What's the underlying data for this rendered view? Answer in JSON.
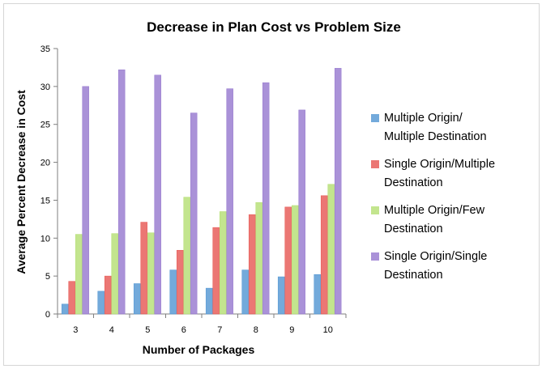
{
  "chart_data": {
    "type": "bar",
    "title": "Decrease in Plan Cost vs Problem Size",
    "xlabel": "Number of Packages",
    "ylabel": "Average Percent Decrease in Cost",
    "ylim": [
      0,
      35
    ],
    "yticks": [
      0,
      5,
      10,
      15,
      20,
      25,
      30,
      35
    ],
    "grid": false,
    "legend_position": "right",
    "categories": [
      "3",
      "4",
      "5",
      "6",
      "7",
      "8",
      "9",
      "10"
    ],
    "series": [
      {
        "name": "Multiple Origin/ Multiple Destination",
        "legend_lines": [
          "Multiple Origin/",
          "Multiple Destination"
        ],
        "color": "#5b9bd5",
        "values": [
          1.3,
          3.0,
          4.0,
          5.8,
          3.4,
          5.8,
          4.9,
          5.2
        ]
      },
      {
        "name": "Single Origin/Multiple Destination",
        "legend_lines": [
          "Single Origin/Multiple",
          "Destination"
        ],
        "color": "#e85f5c",
        "values": [
          4.3,
          5.0,
          12.1,
          8.4,
          11.4,
          13.1,
          14.1,
          15.6
        ]
      },
      {
        "name": "Multiple Origin/Few Destination",
        "legend_lines": [
          "Multiple Origin/Few",
          "Destination"
        ],
        "color": "#b9e07a",
        "values": [
          10.5,
          10.6,
          10.7,
          15.4,
          13.5,
          14.7,
          14.3,
          17.1
        ]
      },
      {
        "name": "Single Origin/Single Destination",
        "legend_lines": [
          "Single Origin/Single",
          "Destination"
        ],
        "color": "#9b7fd1",
        "values": [
          30.0,
          32.2,
          31.5,
          26.5,
          29.7,
          30.5,
          26.9,
          32.4
        ]
      }
    ]
  }
}
